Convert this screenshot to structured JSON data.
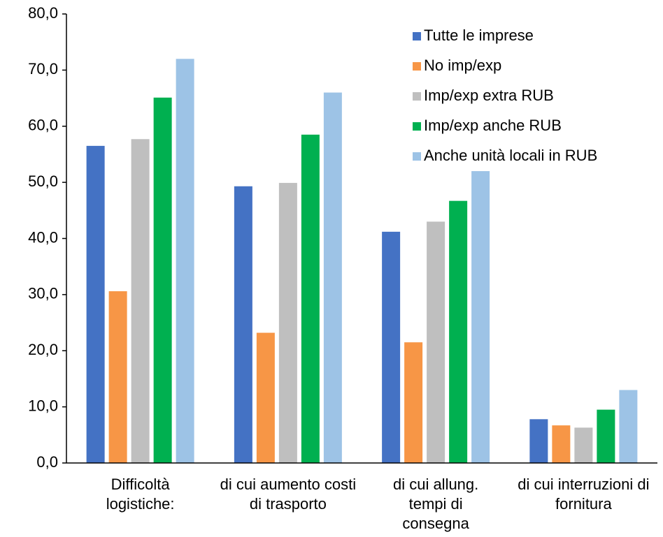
{
  "chart_data": {
    "type": "bar",
    "categories": [
      "Difficoltà logistiche:",
      "di cui aumento costi di trasporto",
      "di cui allung. tempi di consegna",
      "di cui interruzioni di fornitura"
    ],
    "series": [
      {
        "name": "Tutte le imprese",
        "color": "#4472c4",
        "values": [
          56.5,
          49.3,
          41.2,
          7.8
        ]
      },
      {
        "name": "No imp/exp",
        "color": "#f79646",
        "values": [
          30.6,
          23.2,
          21.5,
          6.7
        ]
      },
      {
        "name": "Imp/exp extra RUB",
        "color": "#bfbfbf",
        "values": [
          57.7,
          49.9,
          43.0,
          6.3
        ]
      },
      {
        "name": "Imp/exp anche RUB",
        "color": "#00b050",
        "values": [
          65.1,
          58.5,
          46.7,
          9.5
        ]
      },
      {
        "name": "Anche unità locali in RUB",
        "color": "#9dc3e6",
        "values": [
          72.0,
          66.0,
          52.0,
          13.0
        ]
      }
    ],
    "ylim": [
      0,
      80
    ],
    "yticks": [
      {
        "value": 0,
        "label": "0,0"
      },
      {
        "value": 10,
        "label": "10,0"
      },
      {
        "value": 20,
        "label": "20,0"
      },
      {
        "value": 30,
        "label": "30,0"
      },
      {
        "value": 40,
        "label": "40,0"
      },
      {
        "value": 50,
        "label": "50,0"
      },
      {
        "value": 60,
        "label": "60,0"
      },
      {
        "value": 70,
        "label": "70,0"
      },
      {
        "value": 80,
        "label": "80,0"
      }
    ],
    "legend": "top-right"
  }
}
